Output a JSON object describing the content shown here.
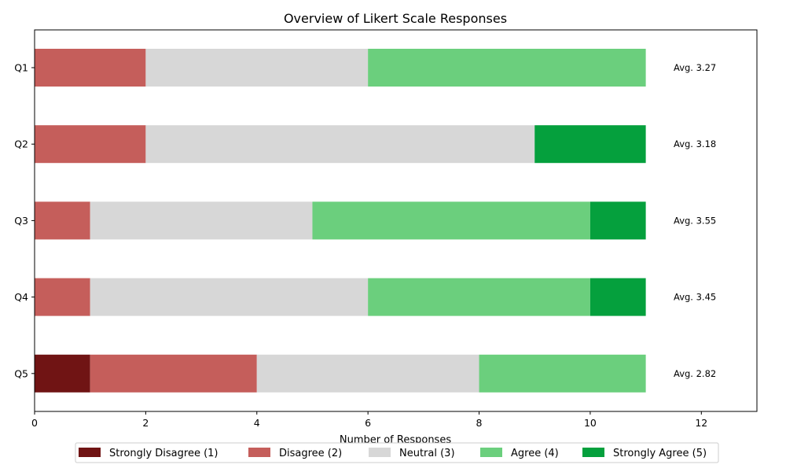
{
  "chart_data": {
    "type": "bar",
    "orientation": "horizontal",
    "stacked": true,
    "title": "Overview of Likert Scale Responses",
    "xlabel": "Number of Responses",
    "ylabel": "",
    "xlim": [
      0,
      13
    ],
    "xticks": [
      0,
      2,
      4,
      6,
      8,
      10,
      12
    ],
    "grid": false,
    "legend_position": "bottom",
    "categories": [
      "Q1",
      "Q2",
      "Q3",
      "Q4",
      "Q5"
    ],
    "series": [
      {
        "name": "Strongly Disagree (1)",
        "color": "#701414",
        "values": [
          0,
          0,
          0,
          0,
          1
        ]
      },
      {
        "name": "Disagree (2)",
        "color": "#c55e5b",
        "values": [
          2,
          2,
          1,
          1,
          3
        ]
      },
      {
        "name": "Neutral (3)",
        "color": "#d7d7d7",
        "values": [
          4,
          7,
          4,
          5,
          4
        ]
      },
      {
        "name": "Agree (4)",
        "color": "#6bcf7d",
        "values": [
          5,
          0,
          5,
          4,
          3
        ]
      },
      {
        "name": "Strongly Agree (5)",
        "color": "#05a03d",
        "values": [
          0,
          2,
          1,
          1,
          0
        ]
      }
    ],
    "annotations": [
      "Avg. 3.27",
      "Avg. 3.18",
      "Avg. 3.55",
      "Avg. 3.45",
      "Avg. 2.82"
    ]
  }
}
